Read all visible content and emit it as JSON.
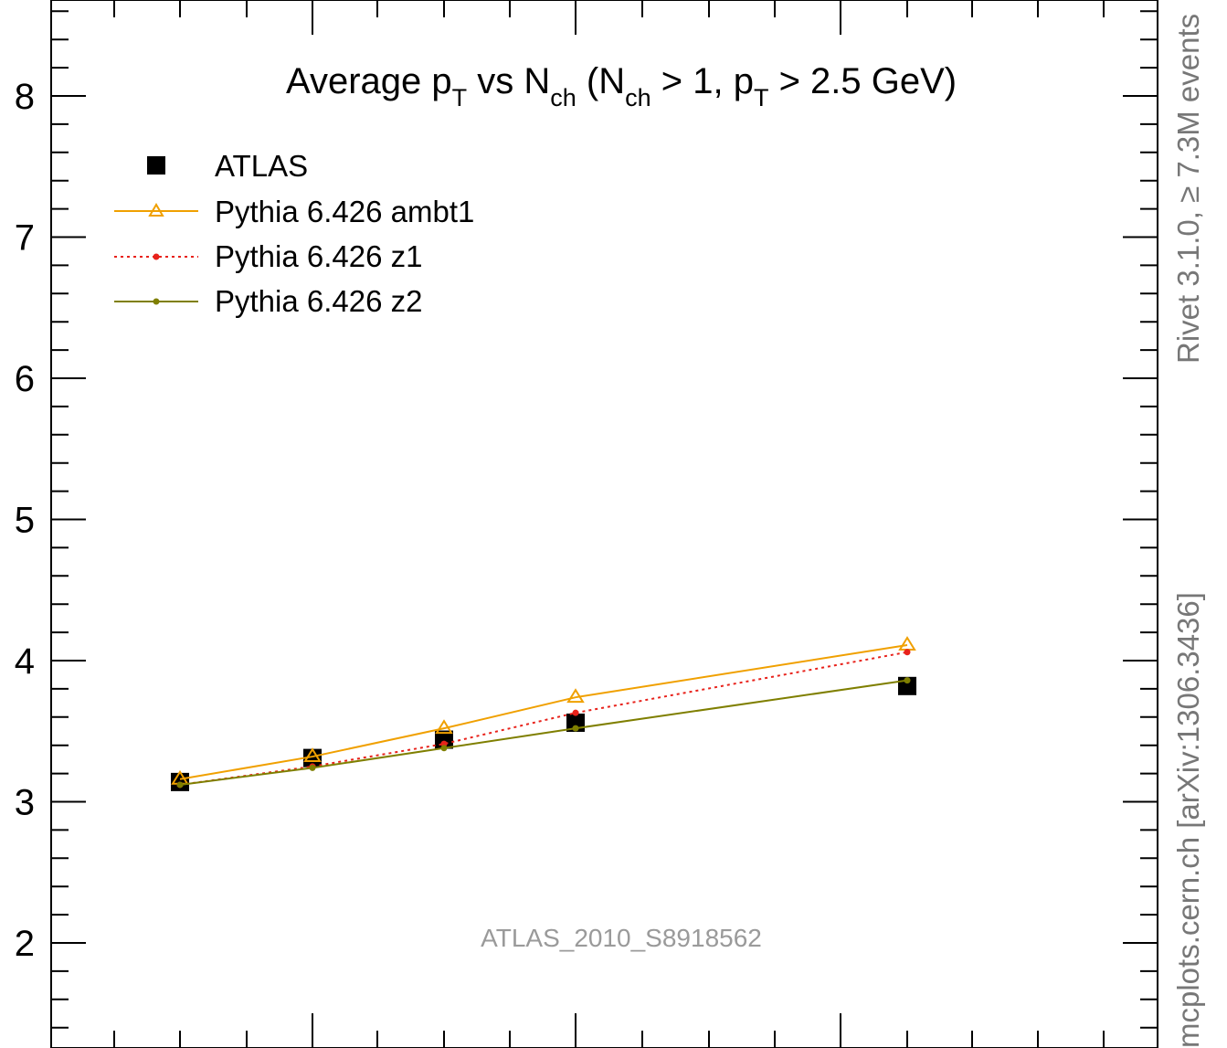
{
  "chart_data": {
    "type": "line",
    "title": "Average p_T vs N_ch (N_ch > 1, p_T > 2.5 GeV)",
    "title_parts": {
      "t1": "Average p",
      "t1_sub": "T",
      "t2": " vs N",
      "t2_sub": "ch",
      "t3": " (N",
      "t3_sub": "ch",
      "t4": " > 1, p",
      "t4_sub": "T",
      "t5": " > 2.5 GeV)"
    },
    "xlabel": "",
    "ylabel": "",
    "ylim": [
      1.4,
      8.6
    ],
    "xlim": [
      0,
      10
    ],
    "yticks": [
      2,
      3,
      4,
      5,
      6,
      7,
      8
    ],
    "grid": false,
    "legend_placement": "top-left",
    "series": [
      {
        "name": "ATLAS",
        "style": "square-markers",
        "color": "#000000",
        "x": [
          1,
          3,
          5,
          7,
          11
        ],
        "y": [
          3.14,
          3.31,
          3.44,
          3.56,
          3.82
        ]
      },
      {
        "name": "Pythia 6.426 ambt1",
        "style": "solid-triangle",
        "color": "#f0a000",
        "x": [
          1,
          3,
          5,
          7,
          11
        ],
        "y": [
          3.16,
          3.32,
          3.52,
          3.74,
          4.11
        ]
      },
      {
        "name": "Pythia 6.426 z1",
        "style": "dotted-dot",
        "color": "#e8221b",
        "x": [
          1,
          3,
          5,
          7,
          11
        ],
        "y": [
          3.12,
          3.25,
          3.41,
          3.63,
          4.06
        ]
      },
      {
        "name": "Pythia 6.426 z2",
        "style": "solid-dot",
        "color": "#7f7f00",
        "x": [
          1,
          3,
          5,
          7,
          11
        ],
        "y": [
          3.12,
          3.24,
          3.38,
          3.52,
          3.86
        ]
      }
    ],
    "annotation": "ATLAS_2010_S8918562",
    "side_label_top": "Rivet 3.1.0, ≥ 7.3M events",
    "side_label_bottom": "mcplots.cern.ch [arXiv:1306.3436]"
  }
}
